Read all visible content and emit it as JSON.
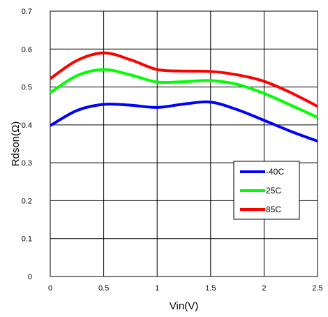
{
  "chart_data": {
    "type": "line",
    "xlabel": "Vin(V)",
    "ylabel": "Rdson(Ω)",
    "xlim": [
      0,
      2.5
    ],
    "ylim": [
      0,
      0.7
    ],
    "xticks": [
      0,
      0.5,
      1,
      1.5,
      2,
      2.5
    ],
    "yticks": [
      0,
      0.1,
      0.2,
      0.3,
      0.4,
      0.5,
      0.6,
      0.7
    ],
    "xtick_labels": [
      "0",
      "0.5",
      "1",
      "1.5",
      "2",
      "2.5"
    ],
    "ytick_labels": [
      "0",
      "0.1",
      "0.2",
      "0.3",
      "0.4",
      "0.5",
      "0.6",
      "0.7"
    ],
    "grid": true,
    "legend_position": "right-middle",
    "series": [
      {
        "name": "-40C",
        "color": "#0000ff",
        "x": [
          0,
          0.25,
          0.5,
          0.75,
          1.0,
          1.25,
          1.5,
          1.75,
          2.0,
          2.25,
          2.5
        ],
        "y": [
          0.398,
          0.438,
          0.454,
          0.452,
          0.446,
          0.455,
          0.46,
          0.44,
          0.412,
          0.383,
          0.357
        ]
      },
      {
        "name": "25C",
        "color": "#00ff00",
        "x": [
          0,
          0.25,
          0.5,
          0.75,
          1.0,
          1.25,
          1.5,
          1.75,
          2.0,
          2.25,
          2.5
        ],
        "y": [
          0.485,
          0.53,
          0.546,
          0.532,
          0.513,
          0.514,
          0.517,
          0.507,
          0.483,
          0.452,
          0.42
        ]
      },
      {
        "name": "85C",
        "color": "#ff0000",
        "x": [
          0,
          0.25,
          0.5,
          0.75,
          1.0,
          1.25,
          1.5,
          1.75,
          2.0,
          2.25,
          2.5
        ],
        "y": [
          0.522,
          0.57,
          0.59,
          0.572,
          0.546,
          0.542,
          0.541,
          0.532,
          0.515,
          0.485,
          0.449
        ]
      }
    ]
  }
}
